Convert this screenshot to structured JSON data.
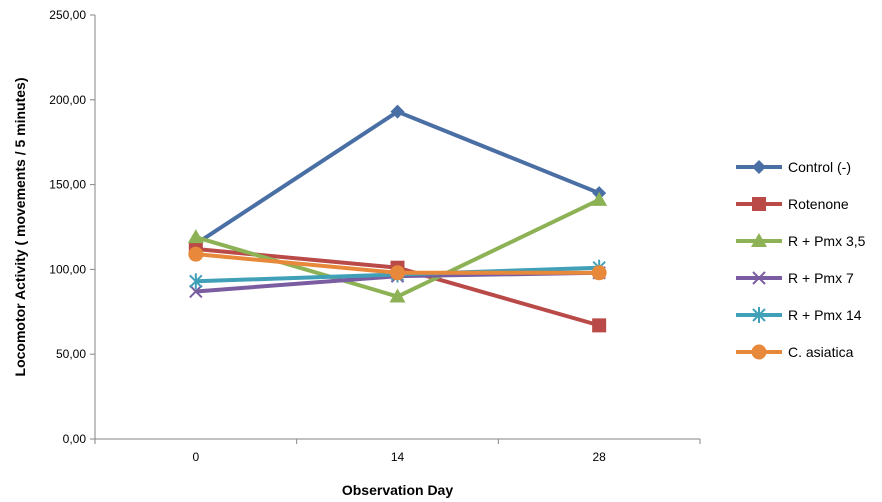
{
  "chart_data": {
    "type": "line",
    "title": "",
    "xlabel": "Observation Day",
    "ylabel": "Locomotor Activity ( movements / 5 minutes)",
    "categories": [
      "0",
      "14",
      "28"
    ],
    "ylim": [
      0,
      250
    ],
    "ytick_step": 50,
    "ytick_labels": [
      "0,00",
      "50,00",
      "100,00",
      "150,00",
      "200,00",
      "250,00"
    ],
    "grid": false,
    "legend_position": "right",
    "series": [
      {
        "name": "Control (-)",
        "values": [
          115,
          193,
          145
        ],
        "color": "#4a6fa5",
        "marker": "diamond"
      },
      {
        "name": "Rotenone",
        "values": [
          112,
          101,
          67
        ],
        "color": "#b94a48",
        "marker": "square"
      },
      {
        "name": "R + Pmx 3,5",
        "values": [
          119,
          84,
          141
        ],
        "color": "#8db255",
        "marker": "triangle"
      },
      {
        "name": "R + Pmx 7",
        "values": [
          87,
          96,
          98
        ],
        "color": "#7a5ca0",
        "marker": "x"
      },
      {
        "name": "R + Pmx  14",
        "values": [
          93,
          97,
          101
        ],
        "color": "#3fa0b8",
        "marker": "star"
      },
      {
        "name": "C. asiatica",
        "values": [
          109,
          98,
          98
        ],
        "color": "#e8883a",
        "marker": "circle"
      }
    ]
  }
}
